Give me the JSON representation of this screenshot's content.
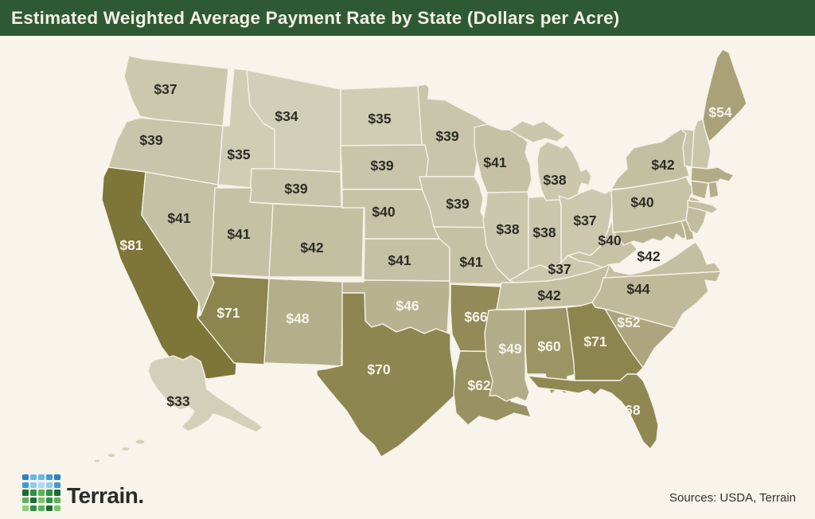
{
  "title": "Estimated Weighted Average Payment Rate by State (Dollars per Acre)",
  "title_bar": {
    "background": "#2e5a33",
    "text_color": "#f4f0e5"
  },
  "canvas": {
    "background": "#f8f3eb"
  },
  "footer": {
    "brand": "Terrain.",
    "sources": "Sources: USDA, Terrain",
    "logo_colors": [
      "#2f7fc1",
      "#64b9e9",
      "#64b9e9",
      "#3f9ad8",
      "#2f7fc1",
      "#3f9ad8",
      "#8ccdf0",
      "#a8dcf5",
      "#8ccdf0",
      "#3f9ad8",
      "#1d6b34",
      "#2f8f46",
      "#57b558",
      "#2f8f46",
      "#1d6b34",
      "#57b558",
      "#1d6b34",
      "#76c465",
      "#2f8f46",
      "#57b558",
      "#8ed06f",
      "#2f8f46",
      "#57b558",
      "#1d6b34",
      "#76c465"
    ]
  },
  "map": {
    "label_color_dark": "#2c2c25",
    "label_color_light": "#f7f4ec",
    "states": {
      "WA": {
        "name": "Washington",
        "label": "$37",
        "value": 37,
        "fill": "#cbc8ae"
      },
      "OR": {
        "name": "Oregon",
        "label": "$39",
        "value": 39,
        "fill": "#c8c5aa"
      },
      "CA": {
        "name": "California",
        "label": "$81",
        "value": 81,
        "fill": "#7e7638"
      },
      "ID": {
        "name": "Idaho",
        "label": "$35",
        "value": 35,
        "fill": "#d0cdb5"
      },
      "NV": {
        "name": "Nevada",
        "label": "$41",
        "value": 41,
        "fill": "#c5c1a4"
      },
      "MT": {
        "name": "Montana",
        "label": "$34",
        "value": 34,
        "fill": "#d2cfb8"
      },
      "WY": {
        "name": "Wyoming",
        "label": "$39",
        "value": 39,
        "fill": "#c8c5aa"
      },
      "UT": {
        "name": "Utah",
        "label": "$41",
        "value": 41,
        "fill": "#c5c1a4"
      },
      "CO": {
        "name": "Colorado",
        "label": "$42",
        "value": 42,
        "fill": "#c3bfa1"
      },
      "AZ": {
        "name": "Arizona",
        "label": "$71",
        "value": 71,
        "fill": "#8d854e"
      },
      "NM": {
        "name": "New Mexico",
        "label": "$48",
        "value": 48,
        "fill": "#b5ae8b"
      },
      "ND": {
        "name": "North Dakota",
        "label": "$35",
        "value": 35,
        "fill": "#d0cdb5"
      },
      "SD": {
        "name": "South Dakota",
        "label": "$39",
        "value": 39,
        "fill": "#c8c5aa"
      },
      "NE": {
        "name": "Nebraska",
        "label": "$40",
        "value": 40,
        "fill": "#c7c3a7"
      },
      "KS": {
        "name": "Kansas",
        "label": "$41",
        "value": 41,
        "fill": "#c5c1a4"
      },
      "OK": {
        "name": "Oklahoma",
        "label": "$46",
        "value": 46,
        "fill": "#b9b291"
      },
      "TX": {
        "name": "Texas",
        "label": "$70",
        "value": 70,
        "fill": "#8e8650"
      },
      "MN": {
        "name": "Minnesota",
        "label": "$39",
        "value": 39,
        "fill": "#c8c5aa"
      },
      "IA": {
        "name": "Iowa",
        "label": "$39",
        "value": 39,
        "fill": "#c8c5aa"
      },
      "MO": {
        "name": "Missouri",
        "label": "$41",
        "value": 41,
        "fill": "#c5c1a4"
      },
      "AR": {
        "name": "Arkansas",
        "label": "$66",
        "value": 66,
        "fill": "#928b57"
      },
      "LA": {
        "name": "Louisiana",
        "label": "$62",
        "value": 62,
        "fill": "#989161"
      },
      "WI": {
        "name": "Wisconsin",
        "label": "$41",
        "value": 41,
        "fill": "#c5c1a4"
      },
      "IL": {
        "name": "Illinois",
        "label": "$38",
        "value": 38,
        "fill": "#cac7ac"
      },
      "IN": {
        "name": "Indiana",
        "label": "$38",
        "value": 38,
        "fill": "#cac7ac"
      },
      "MI": {
        "name": "Michigan",
        "label": "$38",
        "value": 38,
        "fill": "#cac7ac"
      },
      "OH": {
        "name": "Ohio",
        "label": "$37",
        "value": 37,
        "fill": "#cbc8ae"
      },
      "KY": {
        "name": "Kentucky",
        "label": "$37",
        "value": 37,
        "fill": "#cbc8ae"
      },
      "TN": {
        "name": "Tennessee",
        "label": "$42",
        "value": 42,
        "fill": "#c3bfa1"
      },
      "MS": {
        "name": "Mississippi",
        "label": "$49",
        "value": 49,
        "fill": "#b3ac88"
      },
      "AL": {
        "name": "Alabama",
        "label": "$60",
        "value": 60,
        "fill": "#9b9465"
      },
      "GA": {
        "name": "Georgia",
        "label": "$71",
        "value": 71,
        "fill": "#8d854e"
      },
      "FL": {
        "name": "Florida",
        "label": "$68",
        "value": 68,
        "fill": "#908853"
      },
      "SC": {
        "name": "South Carolina",
        "label": "$52",
        "value": 52,
        "fill": "#aca57d"
      },
      "NC": {
        "name": "North Carolina",
        "label": "$44",
        "value": 44,
        "fill": "#bfba9a"
      },
      "VA": {
        "name": "Virginia",
        "label": "$42",
        "value": 42,
        "fill": "#c3bfa1"
      },
      "WV": {
        "name": "West Virginia",
        "label": "$40",
        "value": 40,
        "fill": "#c7c3a7"
      },
      "PA": {
        "name": "Pennsylvania",
        "label": "$40",
        "value": 40,
        "fill": "#c7c3a7"
      },
      "NY": {
        "name": "New York",
        "label": "$42",
        "value": 42,
        "fill": "#c3bfa1"
      },
      "ME": {
        "name": "Maine",
        "label": "$54",
        "value": 54,
        "fill": "#a9a279"
      },
      "AK": {
        "name": "Alaska",
        "label": "$33",
        "value": 33,
        "fill": "#d3d0ba"
      },
      "VT": {
        "name": "Vermont",
        "fill": "#c8c5aa"
      },
      "NH": {
        "name": "New Hampshire",
        "fill": "#c9c6ab"
      },
      "MA": {
        "name": "Massachusetts",
        "fill": "#b2ac85"
      },
      "CT": {
        "name": "Connecticut",
        "fill": "#b8b290"
      },
      "RI": {
        "name": "Rhode Island",
        "fill": "#b5ae8b"
      },
      "NJ": {
        "name": "New Jersey",
        "fill": "#c1bd9f"
      },
      "DE": {
        "name": "Delaware",
        "fill": "#b7b18e"
      },
      "MD": {
        "name": "Maryland",
        "fill": "#b9b392"
      }
    }
  },
  "chart_data": {
    "type": "choropleth-map",
    "title": "Estimated Weighted Average Payment Rate by State (Dollars per Acre)",
    "unit": "dollars per acre",
    "value_range": [
      33,
      81
    ],
    "color_scale": {
      "low": "#d3d0ba",
      "high": "#7e7638"
    },
    "states": [
      {
        "state": "Washington",
        "value": 37
      },
      {
        "state": "Oregon",
        "value": 39
      },
      {
        "state": "California",
        "value": 81
      },
      {
        "state": "Idaho",
        "value": 35
      },
      {
        "state": "Nevada",
        "value": 41
      },
      {
        "state": "Montana",
        "value": 34
      },
      {
        "state": "Wyoming",
        "value": 39
      },
      {
        "state": "Utah",
        "value": 41
      },
      {
        "state": "Colorado",
        "value": 42
      },
      {
        "state": "Arizona",
        "value": 71
      },
      {
        "state": "New Mexico",
        "value": 48
      },
      {
        "state": "North Dakota",
        "value": 35
      },
      {
        "state": "South Dakota",
        "value": 39
      },
      {
        "state": "Nebraska",
        "value": 40
      },
      {
        "state": "Kansas",
        "value": 41
      },
      {
        "state": "Oklahoma",
        "value": 46
      },
      {
        "state": "Texas",
        "value": 70
      },
      {
        "state": "Minnesota",
        "value": 39
      },
      {
        "state": "Iowa",
        "value": 39
      },
      {
        "state": "Missouri",
        "value": 41
      },
      {
        "state": "Arkansas",
        "value": 66
      },
      {
        "state": "Louisiana",
        "value": 62
      },
      {
        "state": "Wisconsin",
        "value": 41
      },
      {
        "state": "Illinois",
        "value": 38
      },
      {
        "state": "Indiana",
        "value": 38
      },
      {
        "state": "Michigan",
        "value": 38
      },
      {
        "state": "Ohio",
        "value": 37
      },
      {
        "state": "Kentucky",
        "value": 37
      },
      {
        "state": "Tennessee",
        "value": 42
      },
      {
        "state": "Mississippi",
        "value": 49
      },
      {
        "state": "Alabama",
        "value": 60
      },
      {
        "state": "Georgia",
        "value": 71
      },
      {
        "state": "Florida",
        "value": 68
      },
      {
        "state": "South Carolina",
        "value": 52
      },
      {
        "state": "North Carolina",
        "value": 44
      },
      {
        "state": "Virginia",
        "value": 42
      },
      {
        "state": "West Virginia",
        "value": 40
      },
      {
        "state": "Pennsylvania",
        "value": 40
      },
      {
        "state": "New York",
        "value": 42
      },
      {
        "state": "Maine",
        "value": 54
      },
      {
        "state": "Alaska",
        "value": 33
      }
    ]
  }
}
